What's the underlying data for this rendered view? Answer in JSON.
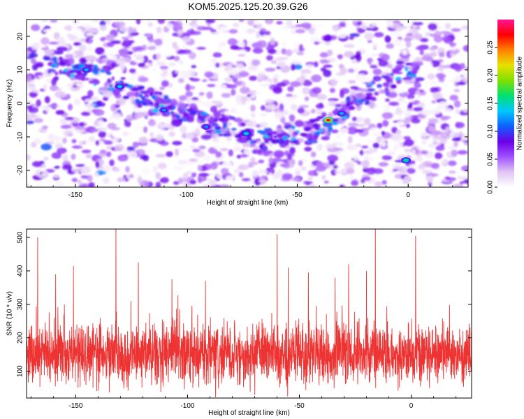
{
  "title": "KOM5.2025.125.20.39.G26",
  "chart_data": [
    {
      "type": "heatmap",
      "xlabel": "Height of straight line (km)",
      "ylabel": "Frequency (Hz)",
      "xlim": [
        -172,
        27
      ],
      "ylim": [
        -25,
        25
      ],
      "xticks": [
        -150,
        -100,
        -50,
        0
      ],
      "yticks": [
        -20,
        -10,
        0,
        10,
        20
      ],
      "colorbar": {
        "label": "Normalized spectral amplitude",
        "range": [
          0,
          0.3
        ],
        "ticks": [
          "0.00",
          "0.05",
          "0.10",
          "0.15",
          "0.20",
          "0.25"
        ],
        "tick_values": [
          0,
          0.05,
          0.1,
          0.15,
          0.2,
          0.25
        ],
        "colors": [
          "#ffffff",
          "#e0c4f4",
          "#a050ff",
          "#6a00e8",
          "#1060ff",
          "#00c8ff",
          "#00e070",
          "#80e000",
          "#e8e000",
          "#ff8000",
          "#ff0000",
          "#ff1493"
        ]
      },
      "ridge": {
        "description_points_x": [
          -160,
          -145,
          -130,
          -115,
          -100,
          -85,
          -70,
          -55,
          -42,
          -35,
          -28,
          -20,
          -10,
          0
        ],
        "description_points_y": [
          12,
          9,
          5,
          1,
          -3,
          -7,
          -10,
          -10,
          -8,
          -5,
          -2,
          2,
          6,
          10
        ]
      },
      "hotspots": [
        {
          "x": -36,
          "y": -5,
          "value": 0.28
        },
        {
          "x": -1,
          "y": -17,
          "value": 0.16
        },
        {
          "x": -73,
          "y": -9,
          "value": 0.15
        },
        {
          "x": -130,
          "y": 5,
          "value": 0.14
        },
        {
          "x": -145,
          "y": 10,
          "value": 0.13
        },
        {
          "x": -30,
          "y": -3,
          "value": 0.13
        },
        {
          "x": -91,
          "y": -7,
          "value": 0.12
        },
        {
          "x": -110,
          "y": -2,
          "value": 0.12
        }
      ]
    },
    {
      "type": "line",
      "xlabel": "Height of straight line (km)",
      "ylabel": "SNR (10 * v/v)",
      "xlim": [
        -172,
        27
      ],
      "ylim": [
        20,
        525
      ],
      "xticks": [
        -150,
        -100,
        -50,
        0
      ],
      "yticks": [
        100,
        200,
        300,
        400,
        500
      ],
      "line_color": "#ee3333",
      "baseline_mean": 150,
      "baseline_spread": 70,
      "peaks": [
        {
          "x": -132,
          "y": 525
        },
        {
          "x": -16,
          "y": 525
        },
        {
          "x": -60,
          "y": 510
        },
        {
          "x": 2,
          "y": 505
        },
        {
          "x": -167,
          "y": 500
        },
        {
          "x": -122,
          "y": 425
        },
        {
          "x": -28,
          "y": 420
        },
        {
          "x": -151,
          "y": 415
        },
        {
          "x": -55,
          "y": 410
        },
        {
          "x": -46,
          "y": 395
        },
        {
          "x": -20,
          "y": 400
        },
        {
          "x": -159,
          "y": 390
        },
        {
          "x": -107,
          "y": 375
        },
        {
          "x": -92,
          "y": 370
        },
        {
          "x": -34,
          "y": 380
        }
      ]
    }
  ]
}
